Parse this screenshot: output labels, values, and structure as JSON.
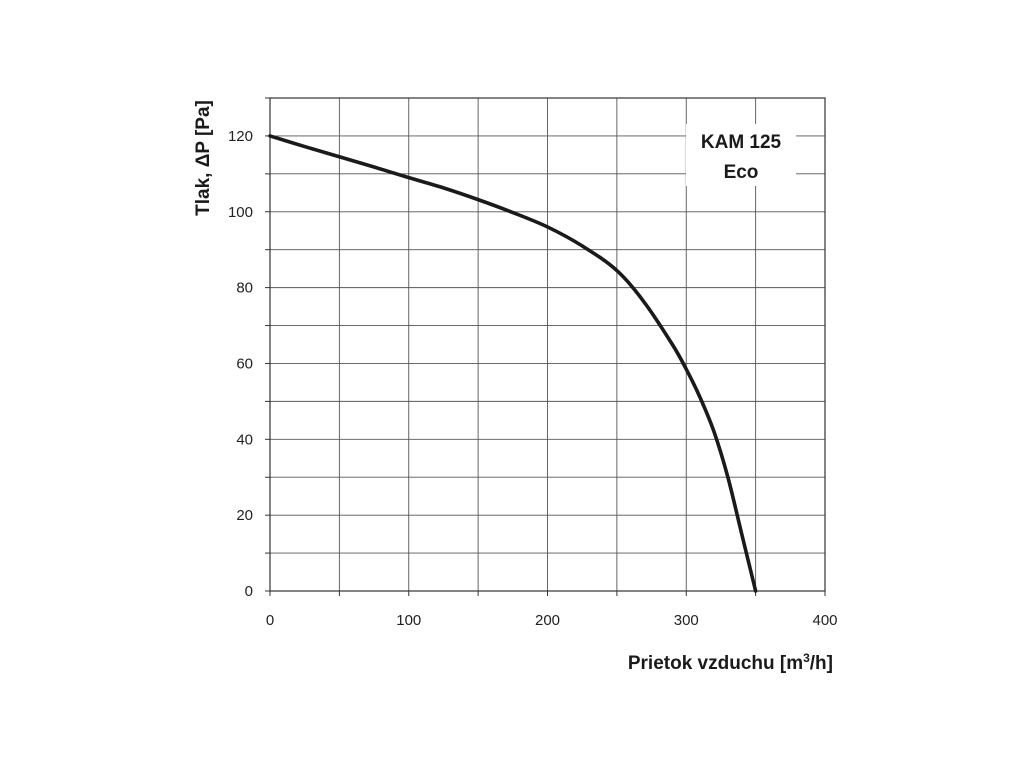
{
  "chart_data": {
    "type": "line",
    "xlabel_main": "Prietok vzduchu  [m",
    "xlabel_sup": "3",
    "xlabel_tail": "/h]",
    "ylabel": "Tlak, ΔP [Pa]",
    "xlim": [
      0,
      400
    ],
    "ylim": [
      0,
      130
    ],
    "x_ticks": [
      0,
      100,
      200,
      300,
      400
    ],
    "y_ticks": [
      0,
      20,
      40,
      60,
      80,
      100,
      120
    ],
    "x_tick_labels": [
      "0",
      "100",
      "200",
      "300",
      "400"
    ],
    "y_tick_labels": [
      "0",
      "20",
      "40",
      "60",
      "80",
      "100",
      "120"
    ],
    "x_grid_step": 50,
    "y_grid_step": 10,
    "grid": true,
    "legend_position": "top-right",
    "legend_lines": [
      "KAM 125",
      "Eco"
    ],
    "series": [
      {
        "color": "#1a1a1a",
        "x": [
          0,
          25,
          50,
          75,
          100,
          125,
          150,
          175,
          200,
          225,
          250,
          270,
          290,
          300,
          310,
          320,
          330,
          340,
          350
        ],
        "y": [
          120,
          117.2,
          114.5,
          111.8,
          109,
          106.3,
          103.2,
          99.8,
          96,
          91,
          84.5,
          76,
          65,
          58.5,
          51,
          42,
          30,
          15,
          0
        ]
      }
    ]
  }
}
